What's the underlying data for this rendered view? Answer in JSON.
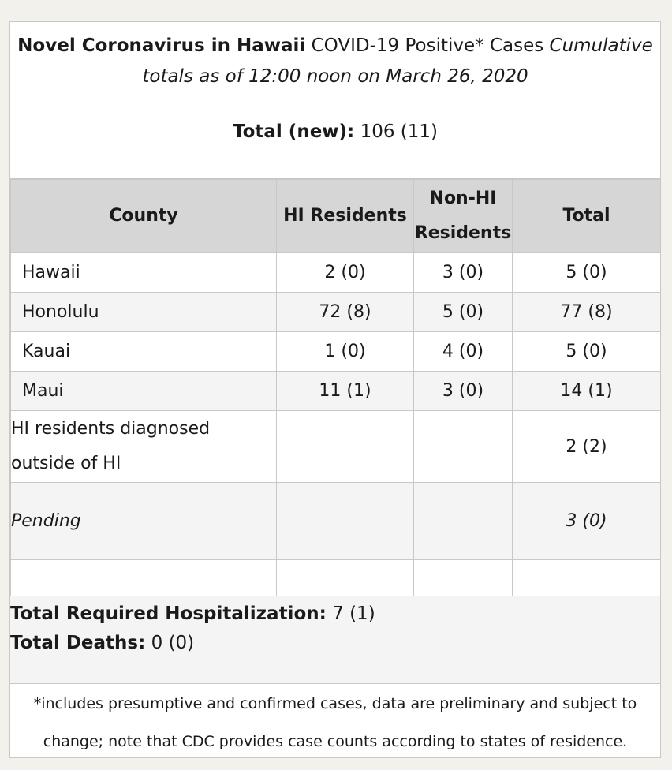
{
  "header": {
    "title_bold": "Novel Coronavirus in Hawaii",
    "title_regular": " COVID-19 Positive* Cases ",
    "title_italic": "Cumulative totals as of 12:00 noon on March 26, 2020",
    "total_label": "Total (new):",
    "total_value": " 106 (11)"
  },
  "table": {
    "columns": [
      "County",
      "HI Residents",
      "Non-HI Residents",
      "Total"
    ],
    "rows": [
      {
        "county": "Hawaii",
        "hi": "2 (0)",
        "non_hi": "3 (0)",
        "total": "5 (0)"
      },
      {
        "county": "Honolulu",
        "hi": "72 (8)",
        "non_hi": "5 (0)",
        "total": "77 (8)"
      },
      {
        "county": "Kauai",
        "hi": "1 (0)",
        "non_hi": "4 (0)",
        "total": "5 (0)"
      },
      {
        "county": "Maui",
        "hi": "11 (1)",
        "non_hi": "3 (0)",
        "total": "14 (1)"
      }
    ],
    "outside": {
      "label": "HI residents diagnosed outside of HI",
      "total": "2 (2)"
    },
    "pending": {
      "label": "Pending",
      "total": "3 (0)"
    }
  },
  "summary": {
    "hosp_label": "Total Required Hospitalization:",
    "hosp_value": " 7 (1)",
    "deaths_label": "Total Deaths:",
    "deaths_value": " 0 (0)"
  },
  "footnote": "*includes presumptive and confirmed cases, data are preliminary and subject to change; note that CDC provides case counts according to states of residence."
}
